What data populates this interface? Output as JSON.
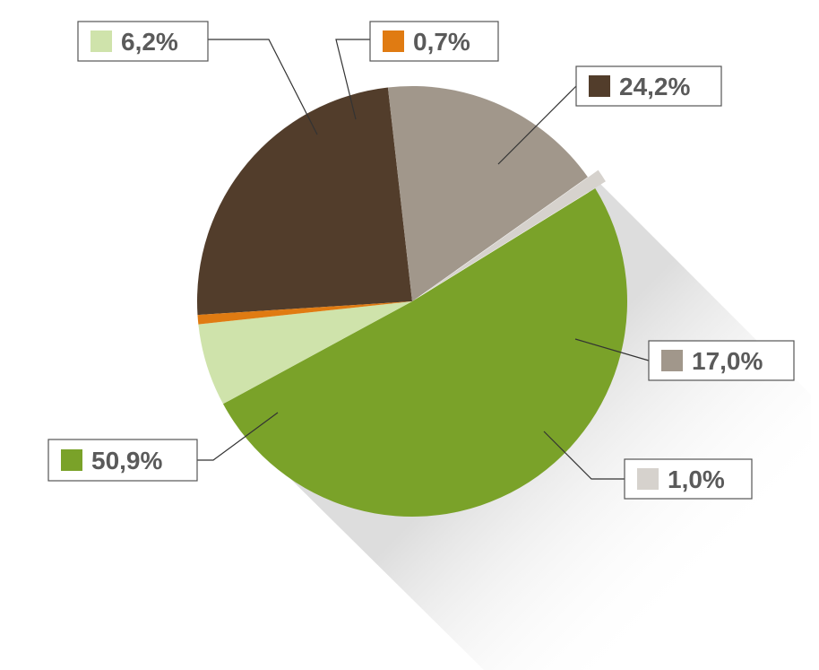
{
  "chart_data": {
    "type": "pie",
    "title": "",
    "slices": [
      {
        "label": "24,2%",
        "value": 24.2,
        "color": "#523d2b"
      },
      {
        "label": "17,0%",
        "value": 17.0,
        "color": "#a1978b"
      },
      {
        "label": "1,0%",
        "value": 1.0,
        "color": "#d6d2cd"
      },
      {
        "label": "50,9%",
        "value": 50.9,
        "color": "#7aa229"
      },
      {
        "label": "6,2%",
        "value": 6.2,
        "color": "#cfe3ab"
      },
      {
        "label": "0,7%",
        "value": 0.7,
        "color": "#e07b12"
      }
    ],
    "legend": "none",
    "data_labels": "callout boxes around the pie"
  }
}
